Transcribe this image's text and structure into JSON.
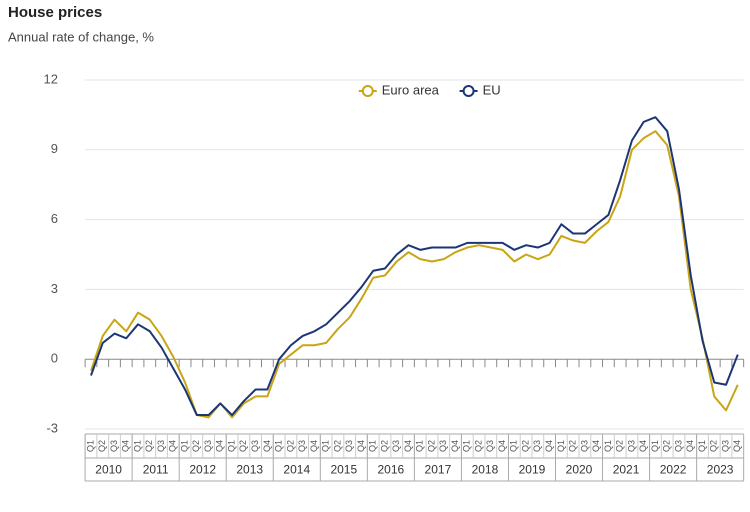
{
  "chart_data": {
    "type": "line",
    "title": "House prices",
    "subtitle": "Annual rate of change, %",
    "categories": [
      "Q1",
      "Q2",
      "Q3",
      "Q4",
      "Q1",
      "Q2",
      "Q3",
      "Q4",
      "Q1",
      "Q2",
      "Q3",
      "Q4",
      "Q1",
      "Q2",
      "Q3",
      "Q4",
      "Q1",
      "Q2",
      "Q3",
      "Q4",
      "Q1",
      "Q2",
      "Q3",
      "Q4",
      "Q1",
      "Q2",
      "Q3",
      "Q4",
      "Q1",
      "Q2",
      "Q3",
      "Q4",
      "Q1",
      "Q2",
      "Q3",
      "Q4",
      "Q1",
      "Q2",
      "Q3",
      "Q4",
      "Q1",
      "Q2",
      "Q3",
      "Q4",
      "Q1",
      "Q2",
      "Q3",
      "Q4",
      "Q1",
      "Q2",
      "Q3",
      "Q4",
      "Q1",
      "Q2",
      "Q3",
      "Q4"
    ],
    "years": [
      "2010",
      "2011",
      "2012",
      "2013",
      "2014",
      "2015",
      "2016",
      "2017",
      "2018",
      "2019",
      "2020",
      "2021",
      "2022",
      "2023"
    ],
    "series": [
      {
        "name": "Euro area",
        "color": "#c9a516",
        "values": [
          -0.5,
          1.0,
          1.7,
          1.2,
          2.0,
          1.7,
          1.0,
          0.1,
          -1.0,
          -2.4,
          -2.5,
          -1.9,
          -2.5,
          -1.9,
          -1.6,
          -1.6,
          -0.2,
          0.2,
          0.6,
          0.6,
          0.7,
          1.3,
          1.8,
          2.6,
          3.5,
          3.6,
          4.2,
          4.6,
          4.3,
          4.2,
          4.3,
          4.6,
          4.8,
          4.9,
          4.8,
          4.7,
          4.2,
          4.5,
          4.3,
          4.5,
          5.3,
          5.1,
          5.0,
          5.5,
          5.9,
          7.0,
          9.0,
          9.5,
          9.8,
          9.2,
          7.0,
          3.0,
          0.9,
          -1.6,
          -2.2,
          -1.1
        ]
      },
      {
        "name": "EU",
        "color": "#1c3574",
        "values": [
          -0.7,
          0.7,
          1.1,
          0.9,
          1.5,
          1.2,
          0.5,
          -0.4,
          -1.3,
          -2.4,
          -2.4,
          -1.9,
          -2.4,
          -1.8,
          -1.3,
          -1.3,
          0.0,
          0.6,
          1.0,
          1.2,
          1.5,
          2.0,
          2.5,
          3.1,
          3.8,
          3.9,
          4.5,
          4.9,
          4.7,
          4.8,
          4.8,
          4.8,
          5.0,
          5.0,
          5.0,
          5.0,
          4.7,
          4.9,
          4.8,
          5.0,
          5.8,
          5.4,
          5.4,
          5.8,
          6.2,
          7.7,
          9.4,
          10.2,
          10.4,
          9.8,
          7.3,
          3.6,
          0.8,
          -1.0,
          -1.1,
          0.2
        ]
      }
    ],
    "ylim": [
      -3,
      12
    ],
    "yticks": [
      -3,
      0,
      3,
      6,
      9,
      12
    ],
    "grid": true,
    "legend": "top"
  }
}
